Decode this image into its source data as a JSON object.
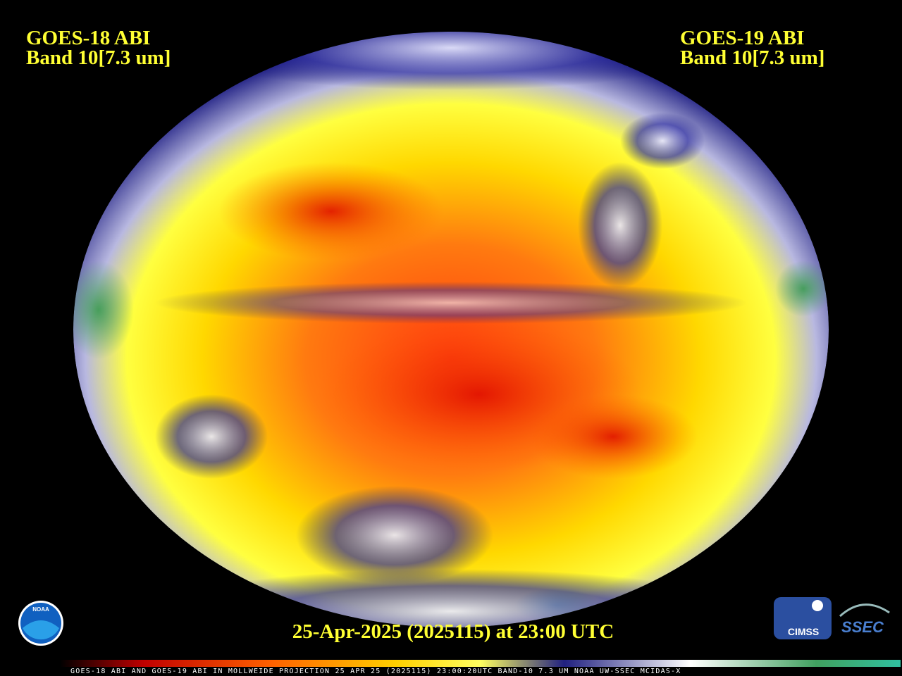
{
  "header": {
    "left": {
      "satellite": "GOES-18 ABI",
      "band": "Band 10[7.3 um]"
    },
    "right": {
      "satellite": "GOES-19 ABI",
      "band": "Band 10[7.3 um]"
    }
  },
  "timestamp": "25-Apr-2025 (2025115) at 23:00 UTC",
  "caption": "GOES-18 ABI AND GOES-19 ABI IN MOLLWEIDE PROJECTION 25 APR 25 (2025115) 23:00:20UTC BAND-10 7.3 UM NOAA UW-SSEC MCIDAS-X",
  "logos": {
    "noaa": "NOAA",
    "cimss": "CIMSS",
    "ssec": "SSEC"
  }
}
